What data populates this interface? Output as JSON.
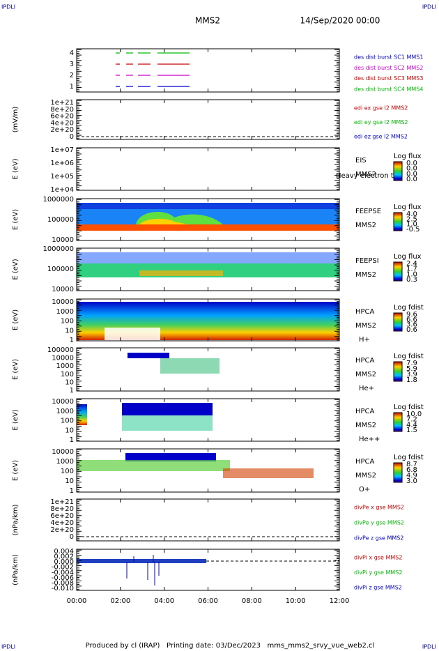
{
  "corner_labels": [
    "IPDLI",
    "IPDLI",
    "IPDLI",
    "IPDLI"
  ],
  "header": {
    "spacecraft": "MMS2",
    "date": "14/Sep/2020 00:00"
  },
  "x_ticks": [
    "00:00",
    "02:00",
    "04:00",
    "06:00",
    "08:00",
    "10:00",
    "12:00"
  ],
  "panels": [
    {
      "ylabel": "",
      "yticks": [
        "4",
        "3",
        "2",
        "1"
      ],
      "legend": [
        {
          "text": "des dist burst SC1 MMS1",
          "color": "#0000cc"
        },
        {
          "text": "des dist burst SC2 MMS2",
          "color": "#cc00cc"
        },
        {
          "text": "des dist burst SC3 MMS3",
          "color": "#cc0000"
        },
        {
          "text": "des dist burst SC4 MMS4",
          "color": "#00bb00"
        }
      ]
    },
    {
      "ylabel": "(mV/m)",
      "yticks": [
        "1e+21",
        "8e+20",
        "6e+20",
        "4e+20",
        "2e+20",
        "0"
      ],
      "legend": [
        {
          "text": "edi ex gse l2 MMS2",
          "color": "#cc0000"
        },
        {
          "text": "edi ey gse l2 MMS2",
          "color": "#00bb00"
        },
        {
          "text": "edi ez gse l2 MMS2",
          "color": "#0000cc"
        }
      ]
    },
    {
      "ylabel": "E (eV)",
      "yticks": [
        "1e+07",
        "1e+06",
        "1e+05",
        "1e+04"
      ],
      "side": [
        "EIS",
        "MMS2"
      ],
      "overlay": "Heavy electron to",
      "colorbar": {
        "title": "Log flux",
        "ticks": [
          "0.0",
          "0.0",
          "0.0",
          "0.0"
        ]
      }
    },
    {
      "ylabel": "E (eV)",
      "yticks": [
        "1000000",
        "100000",
        "10000"
      ],
      "side": [
        "FEEPSE",
        "MMS2"
      ],
      "colorbar": {
        "title": "Log flux",
        "ticks": [
          "4.0",
          "2.5",
          "1.0",
          "-0.5"
        ]
      }
    },
    {
      "ylabel": "E (eV)",
      "yticks": [
        "1000000",
        "100000",
        "10000"
      ],
      "side": [
        "FEEPSI",
        "MMS2"
      ],
      "colorbar": {
        "title": "Log flux",
        "ticks": [
          "2.4",
          "1.7",
          "1.0",
          "0.3"
        ]
      }
    },
    {
      "ylabel": "E (eV)",
      "yticks": [
        "10000",
        "1000",
        "100",
        "10",
        "1"
      ],
      "side": [
        "HPCA",
        "MMS2",
        "H+"
      ],
      "colorbar": {
        "title": "Log fdist",
        "ticks": [
          "9.6",
          "6.6",
          "3.6",
          "0.6"
        ]
      }
    },
    {
      "ylabel": "E (eV)",
      "yticks": [
        "100000",
        "10000",
        "1000",
        "100",
        "10",
        "1"
      ],
      "side": [
        "HPCA",
        "MMS2",
        "He+"
      ],
      "colorbar": {
        "title": "Log fdist",
        "ticks": [
          "7.9",
          "5.9",
          "3.9",
          "1.8"
        ]
      }
    },
    {
      "ylabel": "E (eV)",
      "yticks": [
        "10000",
        "1000",
        "100",
        "10",
        "1"
      ],
      "side": [
        "HPCA",
        "MMS2",
        "He++"
      ],
      "colorbar": {
        "title": "Log fdist",
        "ticks": [
          "10.0",
          "7.2",
          "4.4",
          "1.5"
        ]
      }
    },
    {
      "ylabel": "E (eV)",
      "yticks": [
        "10000",
        "1000",
        "100",
        "10",
        "1"
      ],
      "side": [
        "HPCA",
        "MMS2",
        "O+"
      ],
      "colorbar": {
        "title": "Log fdist",
        "ticks": [
          "8.7",
          "6.8",
          "4.9",
          "3.0"
        ]
      }
    },
    {
      "ylabel": "(nPa/km)",
      "yticks": [
        "1e+21",
        "8e+20",
        "6e+20",
        "4e+20",
        "2e+20",
        "0"
      ],
      "legend": [
        {
          "text": "divPe x gse MMS2",
          "color": "#cc0000"
        },
        {
          "text": "divPe y gse MMS2",
          "color": "#00bb00"
        },
        {
          "text": "divPe z gse MMS2",
          "color": "#0000cc"
        }
      ]
    },
    {
      "ylabel": "(nPa/km)",
      "yticks": [
        "0.004",
        "0.002",
        "0.000",
        "-0.002",
        "-0.004",
        "-0.006",
        "-0.008",
        "-0.010"
      ],
      "legend": [
        {
          "text": "divPi x gse MMS2",
          "color": "#cc0000"
        },
        {
          "text": "divPi y gse MMS2",
          "color": "#00bb00"
        },
        {
          "text": "divPi z gse MMS2",
          "color": "#0000cc"
        }
      ]
    }
  ],
  "footer": "Produced by cl (IRAP)   Printing date: 03/Dec/2023   mms_mms2_srvy_vue_web2.cl"
}
